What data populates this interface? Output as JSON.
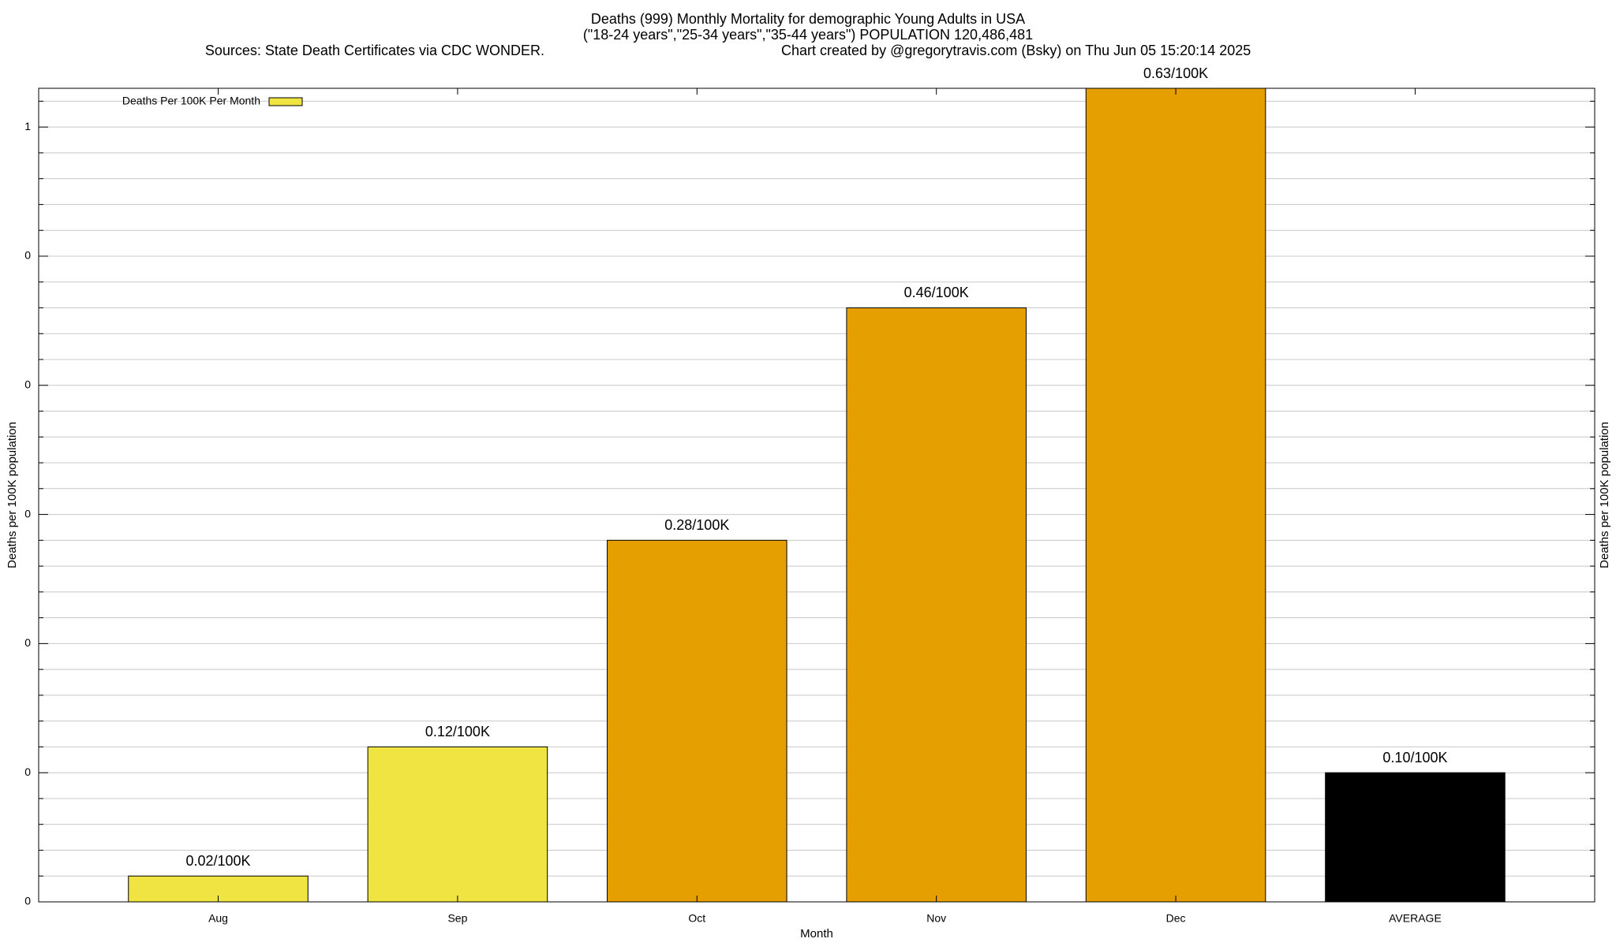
{
  "chart_data": {
    "type": "bar",
    "title": "Deaths (999) Monthly Mortality for demographic Young Adults in USA",
    "subtitle": "(\"18-24 years\",\"25-34 years\",\"35-44 years\") POPULATION 120,486,481",
    "source": "Sources: State Death Certificates via CDC WONDER.",
    "credit": "Chart created by @gregorytravis.com (Bsky) on Thu Jun 05 15:20:14 2025",
    "x_label": "Month",
    "y_label": "Deaths per 100K population",
    "y2_label": "Deaths per 100K population",
    "categories": [
      "Aug",
      "Sep",
      "Oct",
      "Nov",
      "Dec",
      "AVERAGE"
    ],
    "series": [
      {
        "name": "Deaths Per 100K Per Month",
        "color": "#f0e442",
        "colors": [
          "#f0e442",
          "#f0e442",
          "#e69f00",
          "#e69f00",
          "#e69f00",
          "#000000"
        ],
        "values": [
          0.02,
          0.12,
          0.28,
          0.46,
          0.63,
          0.1
        ],
        "value_labels": [
          "0.02/100K",
          "0.12/100K",
          "0.28/100K",
          "0.46/100K",
          "0.63/100K",
          "0.10/100K"
        ]
      }
    ],
    "ylim": [
      0,
      0.63
    ],
    "yticks": [
      0,
      {
        "value": 0.1,
        "label": "0"
      },
      {
        "value": 0.2,
        "label": "0"
      },
      {
        "value": 0.3,
        "label": "0"
      },
      {
        "value": 0.4,
        "label": "0"
      },
      {
        "value": 0.5,
        "label": "0"
      },
      {
        "value": 0.6,
        "label": "1"
      }
    ],
    "yminorticks": [
      0.02,
      0.04,
      0.06,
      0.08,
      0.12,
      0.14,
      0.16,
      0.18,
      0.22,
      0.24,
      0.26,
      0.28,
      0.32,
      0.34,
      0.36,
      0.38,
      0.42,
      0.44,
      0.46,
      0.48,
      0.52,
      0.54,
      0.56,
      0.58,
      0.62
    ],
    "grid": true,
    "legend": "upper left"
  }
}
